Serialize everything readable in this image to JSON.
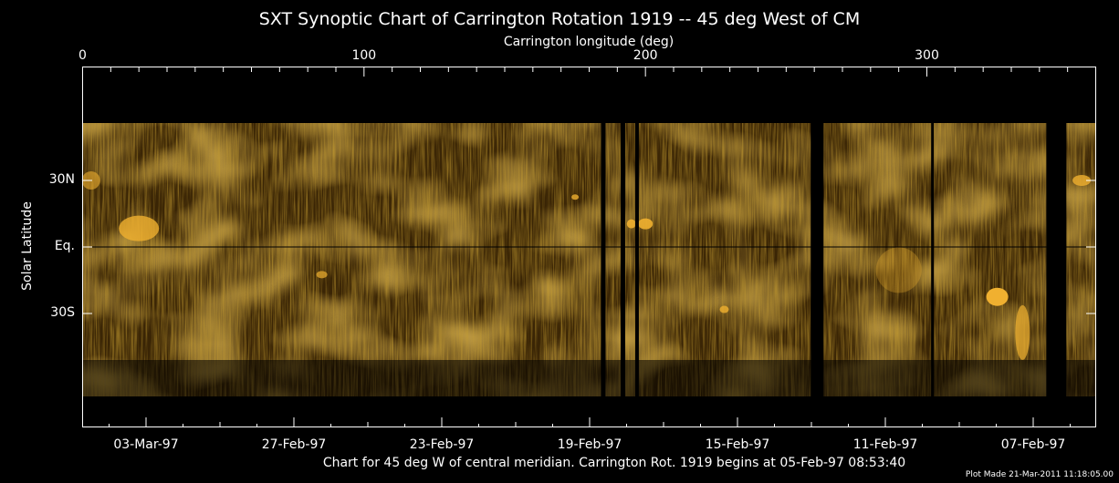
{
  "chart_data": {
    "type": "heatmap",
    "title": "SXT Synoptic Chart of Carrington Rotation 1919 -- 45 deg West of CM",
    "xlabel_top": "Carrington longitude (deg)",
    "x_top_ticks": [
      "0",
      "100",
      "200",
      "300"
    ],
    "xlim": [
      0,
      360
    ],
    "ylabel": "Solar Latitude",
    "y_ticks": [
      {
        "label": "30N",
        "lat": 30
      },
      {
        "label": "Eq.",
        "lat": 0
      },
      {
        "label": "30S",
        "lat": -30
      }
    ],
    "x_bottom_ticks": [
      "03-Mar-97",
      "27-Feb-97",
      "23-Feb-97",
      "19-Feb-97",
      "15-Feb-97",
      "11-Feb-97",
      "07-Feb-97"
    ],
    "caption": "Chart for 45 deg W of central meridian.  Carrington Rot. 1919 begins at 05-Feb-97 08:53:40",
    "footer": "Plot Made 21-Mar-2011 11:18:05.00",
    "data_gaps_longitude": [
      185,
      192,
      197,
      261,
      302,
      346
    ],
    "colormap": {
      "low": "#000000",
      "mid": "#6b4208",
      "high": "#ffd060"
    }
  }
}
